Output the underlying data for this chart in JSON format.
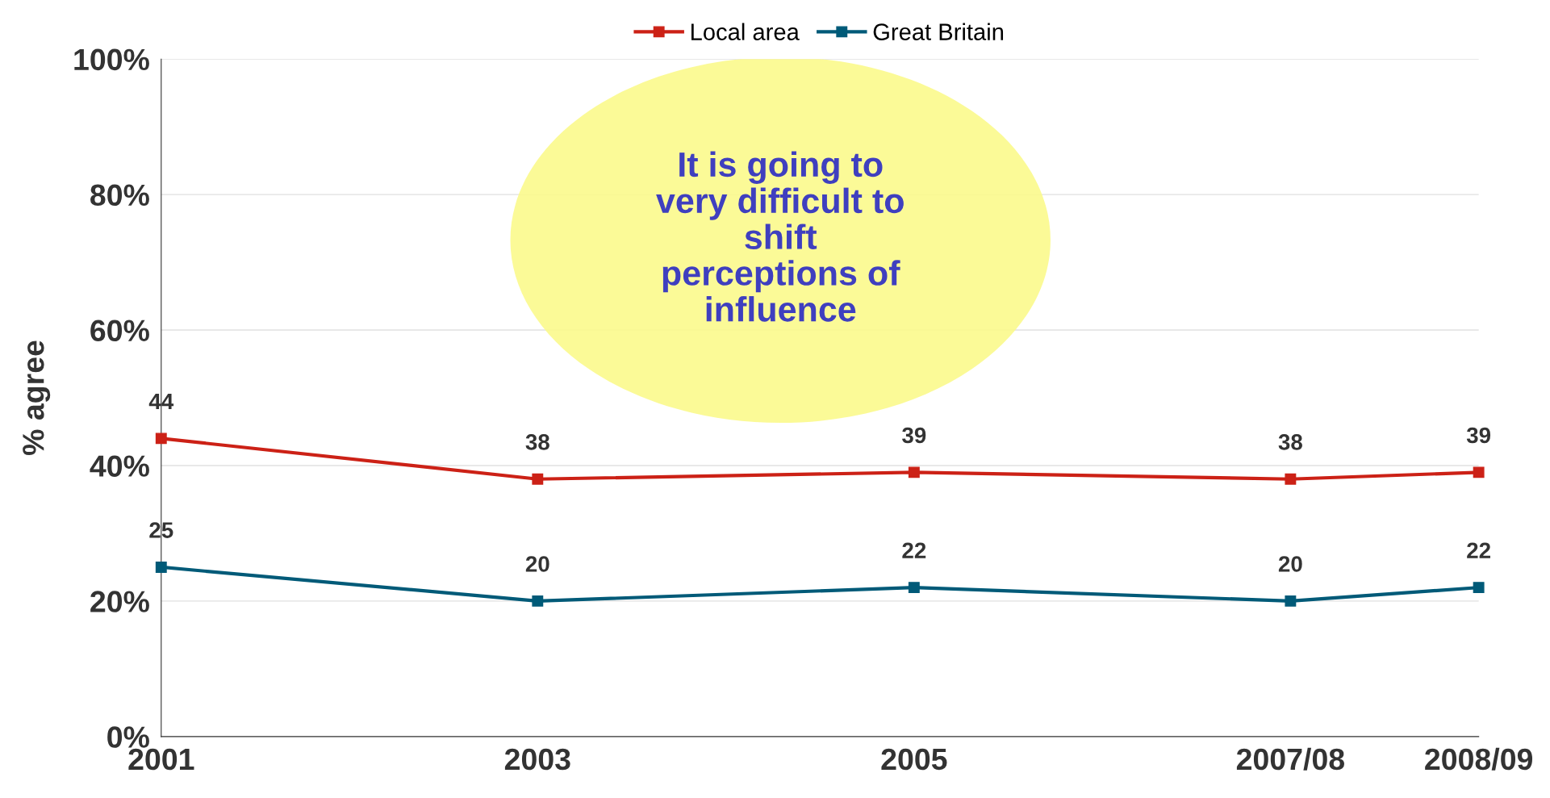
{
  "chart_data": {
    "type": "line",
    "ylabel": "% agree",
    "x": [
      2001,
      2003,
      2005,
      2007,
      2008
    ],
    "xlim": [
      2001,
      2008
    ],
    "xticks": [
      2001,
      2003,
      2005,
      {
        "value": 2007,
        "label": "2007/08"
      },
      {
        "value": 2008,
        "label": "2008/09"
      }
    ],
    "ylim": [
      0,
      100
    ],
    "yticks": [
      {
        "value": 0,
        "label": "0%"
      },
      {
        "value": 20,
        "label": "20%"
      },
      {
        "value": 40,
        "label": "40%"
      },
      {
        "value": 60,
        "label": "60%"
      },
      {
        "value": 80,
        "label": "80%"
      },
      {
        "value": 100,
        "label": "100%"
      }
    ],
    "series": [
      {
        "name": "Local area",
        "color": "#cc2116",
        "values": [
          44,
          38,
          39,
          38,
          39
        ]
      },
      {
        "name": "Great Britain",
        "color": "#005a78",
        "values": [
          25,
          20,
          22,
          20,
          22
        ]
      }
    ],
    "annotations": [
      "It is going to\nvery difficult to\nshift\nperceptions of\ninfluence"
    ],
    "data_labels": true,
    "grid": "y",
    "legend": "top",
    "marker": "square",
    "line_style": "solid"
  }
}
